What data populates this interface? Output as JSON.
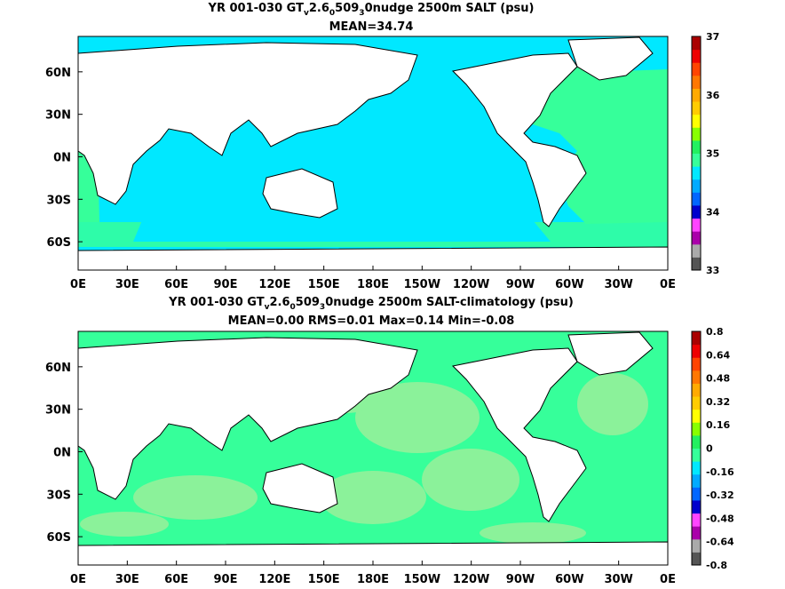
{
  "colors": {
    "ocean_level_35": "#00e8ff",
    "ocean_level_350": "#36ff9a",
    "ocean_level_355": "#22f060",
    "ocean_level_diff_hi": "#9af09a",
    "land": "#ffffff",
    "coast": "#000000"
  },
  "chart_data": [
    {
      "type": "heatmap",
      "title_parts": [
        "YR 001-030 GT",
        "v",
        "2.6",
        "0",
        "509",
        "3",
        "0nudge 2500m SALT (psu)"
      ],
      "subtitle": "MEAN=34.74",
      "x_tick_labels": [
        "0E",
        "30E",
        "60E",
        "90E",
        "120E",
        "150E",
        "180E",
        "150W",
        "120W",
        "90W",
        "60W",
        "30W",
        "0E"
      ],
      "y_tick_labels": [
        "60N",
        "30N",
        "0N",
        "30S",
        "60S"
      ],
      "y_tick_values": [
        60,
        30,
        0,
        -30,
        -60
      ],
      "lon_range": [
        0,
        360
      ],
      "lat_range": [
        -80,
        85
      ],
      "colorbar": {
        "labels": [
          "37",
          "36",
          "35",
          "34",
          "33"
        ],
        "min": 33,
        "max": 37,
        "colors": [
          "#555555",
          "#aaaaaa",
          "#aa00aa",
          "#ff44ff",
          "#0000cc",
          "#0066ff",
          "#00aaff",
          "#00e8ff",
          "#36ff9a",
          "#22f060",
          "#88ff00",
          "#ffff00",
          "#ffcc00",
          "#ffaa00",
          "#ff7700",
          "#ff4400",
          "#ee0000",
          "#aa0000"
        ]
      },
      "dominant_values": {
        "pacific_indian": 34.75,
        "atlantic": 34.9
      }
    },
    {
      "type": "heatmap",
      "title_parts": [
        "YR 001-030 GT",
        "v",
        "2.6",
        "0",
        "509",
        "3",
        "0nudge 2500m SALT-climatology (psu)"
      ],
      "subtitle": "MEAN=0.00   RMS=0.01   Max=0.14   Min=-0.08",
      "x_tick_labels": [
        "0E",
        "30E",
        "60E",
        "90E",
        "120E",
        "150E",
        "180E",
        "150W",
        "120W",
        "90W",
        "60W",
        "30W",
        "0E"
      ],
      "y_tick_labels": [
        "60N",
        "30N",
        "0N",
        "30S",
        "60S"
      ],
      "y_tick_values": [
        60,
        30,
        0,
        -30,
        -60
      ],
      "lon_range": [
        0,
        360
      ],
      "lat_range": [
        -80,
        85
      ],
      "colorbar": {
        "labels": [
          "0.8",
          "0.64",
          "0.48",
          "0.32",
          "0.16",
          "0",
          "-0.16",
          "-0.32",
          "-0.48",
          "-0.64",
          "-0.8"
        ],
        "min": -0.8,
        "max": 0.8,
        "colors": [
          "#555555",
          "#aaaaaa",
          "#aa00aa",
          "#ff44ff",
          "#0000cc",
          "#0066ff",
          "#00aaff",
          "#00e8ff",
          "#36ff9a",
          "#22f060",
          "#88ff00",
          "#ffff00",
          "#ffcc00",
          "#ffaa00",
          "#ff7700",
          "#ff4400",
          "#ee0000",
          "#aa0000"
        ]
      },
      "dominant_values": {
        "base": 0.0,
        "patches": 0.05
      }
    }
  ]
}
